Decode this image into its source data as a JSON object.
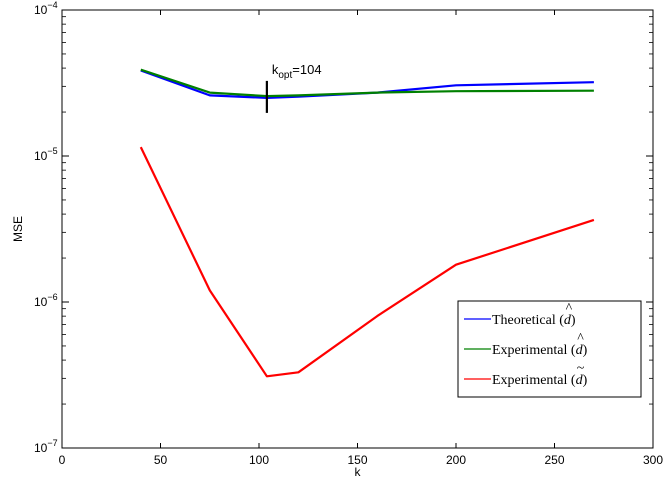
{
  "chart_data": {
    "type": "line",
    "xlabel": "k",
    "ylabel": "MSE",
    "xlim": [
      0,
      300
    ],
    "ylim": [
      1e-07,
      0.0001
    ],
    "yscale": "log",
    "grid": false,
    "legend_position": "bottom-right",
    "x_ticks": [
      {
        "value": 0,
        "label": "0"
      },
      {
        "value": 50,
        "label": "50"
      },
      {
        "value": 100,
        "label": "100"
      },
      {
        "value": 150,
        "label": "150"
      },
      {
        "value": 200,
        "label": "200"
      },
      {
        "value": 250,
        "label": "250"
      },
      {
        "value": 300,
        "label": "300"
      }
    ],
    "y_ticks": [
      {
        "value": 1e-07,
        "base": "10",
        "exp": "−7"
      },
      {
        "value": 1e-06,
        "base": "10",
        "exp": "−6"
      },
      {
        "value": 1e-05,
        "base": "10",
        "exp": "−5"
      },
      {
        "value": 0.0001,
        "base": "10",
        "exp": "−4"
      }
    ],
    "series": [
      {
        "name": "Theoretical (d̂)",
        "color": "#0000ff",
        "x": [
          40,
          75,
          104,
          120,
          160,
          200,
          270
        ],
        "y": [
          3.85e-05,
          2.6e-05,
          2.5e-05,
          2.55e-05,
          2.72e-05,
          3.05e-05,
          3.2e-05
        ]
      },
      {
        "name": "Experimental (d̂)",
        "color": "#008000",
        "x": [
          40,
          75,
          104,
          120,
          160,
          200,
          270
        ],
        "y": [
          3.9e-05,
          2.72e-05,
          2.57e-05,
          2.6e-05,
          2.72e-05,
          2.78e-05,
          2.8e-05
        ]
      },
      {
        "name": "Experimental (d̃)",
        "color": "#ff0000",
        "x": [
          40,
          75,
          104,
          120,
          160,
          200,
          270
        ],
        "y": [
          1.15e-05,
          1.2e-06,
          3.1e-07,
          3.3e-07,
          8e-07,
          1.8e-06,
          3.65e-06
        ]
      }
    ],
    "annotations": [
      {
        "type": "marker",
        "x": 104,
        "y": 2.5e-05,
        "label_main": "k",
        "label_sub": "opt",
        "label_suffix": "=104"
      }
    ],
    "legend": {
      "entries": [
        {
          "prefix": "Theoretical (",
          "glyph": "d",
          "accent": "^",
          "suffix": ")"
        },
        {
          "prefix": "Experimental (",
          "glyph": "d",
          "accent": "^",
          "suffix": ")"
        },
        {
          "prefix": "Experimental (",
          "glyph": "d",
          "accent": "~",
          "suffix": ")"
        }
      ]
    }
  }
}
